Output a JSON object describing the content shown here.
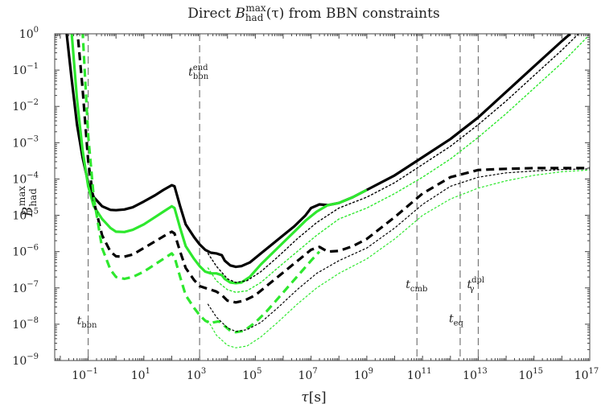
{
  "chart_data": {
    "type": "line",
    "title": "Direct B_had^max(τ) from BBN constraints",
    "title_parts": {
      "prefix": "Direct ",
      "B": "B",
      "sub": "had",
      "sup": "max",
      "suffix": "(τ) from BBN constraints"
    },
    "xlabel": {
      "main": "τ",
      "unit": "[s]"
    },
    "ylabel": {
      "B": "B",
      "sub": "had",
      "sup": "max"
    },
    "xscale": "log",
    "yscale": "log",
    "xlim_log10": [
      -2.2,
      17
    ],
    "ylim_log10": [
      -9,
      0
    ],
    "x_ticks": [
      {
        "exp": -1,
        "label": "10",
        "sup": "−1"
      },
      {
        "exp": 1,
        "label": "10",
        "sup": "1"
      },
      {
        "exp": 3,
        "label": "10",
        "sup": "3"
      },
      {
        "exp": 5,
        "label": "10",
        "sup": "5"
      },
      {
        "exp": 7,
        "label": "10",
        "sup": "7"
      },
      {
        "exp": 9,
        "label": "10",
        "sup": "9"
      },
      {
        "exp": 11,
        "label": "10",
        "sup": "11"
      },
      {
        "exp": 13,
        "label": "10",
        "sup": "13"
      },
      {
        "exp": 15,
        "label": "10",
        "sup": "15"
      },
      {
        "exp": 17,
        "label": "10",
        "sup": "17"
      }
    ],
    "y_ticks": [
      {
        "exp": 0,
        "label": "10",
        "sup": "0"
      },
      {
        "exp": -1,
        "label": "10",
        "sup": "−1"
      },
      {
        "exp": -2,
        "label": "10",
        "sup": "−2"
      },
      {
        "exp": -3,
        "label": "10",
        "sup": "−3"
      },
      {
        "exp": -4,
        "label": "10",
        "sup": "−4"
      },
      {
        "exp": -5,
        "label": "10",
        "sup": "−5"
      },
      {
        "exp": -6,
        "label": "10",
        "sup": "−6"
      },
      {
        "exp": -7,
        "label": "10",
        "sup": "−7"
      },
      {
        "exp": -8,
        "label": "10",
        "sup": "−8"
      },
      {
        "exp": -9,
        "label": "10",
        "sup": "−9"
      }
    ],
    "vlines": [
      {
        "x_log10": -1,
        "label": "t",
        "sub": "bbn",
        "sup": "",
        "label_y_log10": -8.0
      },
      {
        "x_log10": 3,
        "label": "t",
        "sub": "bbn",
        "sup": "end",
        "label_y_log10": -1.15
      },
      {
        "x_log10": 10.8,
        "label": "t",
        "sub": "cmb",
        "sup": "",
        "label_y_log10": -7.0
      },
      {
        "x_log10": 12.35,
        "label": "t",
        "sub": "eq",
        "sup": "",
        "label_y_log10": -7.95
      },
      {
        "x_log10": 13.0,
        "label": "t",
        "sub": "γ",
        "sup": "dpl",
        "label_y_log10": -7.0
      }
    ],
    "series": [
      {
        "color": "#000000",
        "style": "solid",
        "width": 3.2,
        "points": [
          [
            -1.8,
            0.2
          ],
          [
            -1.6,
            -1.2
          ],
          [
            -1.4,
            -2.5
          ],
          [
            -1.2,
            -3.4
          ],
          [
            -1.0,
            -4.1
          ],
          [
            -0.8,
            -4.5
          ],
          [
            -0.5,
            -4.75
          ],
          [
            -0.2,
            -4.85
          ],
          [
            0.0,
            -4.86
          ],
          [
            0.3,
            -4.84
          ],
          [
            0.6,
            -4.78
          ],
          [
            1.0,
            -4.62
          ],
          [
            1.4,
            -4.45
          ],
          [
            1.7,
            -4.3
          ],
          [
            2.0,
            -4.17
          ],
          [
            2.1,
            -4.2
          ],
          [
            2.3,
            -4.75
          ],
          [
            2.5,
            -5.25
          ],
          [
            2.8,
            -5.6
          ],
          [
            3.0,
            -5.8
          ],
          [
            3.2,
            -5.95
          ],
          [
            3.4,
            -6.03
          ],
          [
            3.6,
            -6.05
          ],
          [
            3.8,
            -6.1
          ],
          [
            3.9,
            -6.25
          ],
          [
            4.1,
            -6.38
          ],
          [
            4.3,
            -6.42
          ],
          [
            4.5,
            -6.4
          ],
          [
            4.8,
            -6.3
          ],
          [
            5.2,
            -6.05
          ],
          [
            5.6,
            -5.8
          ],
          [
            6.0,
            -5.55
          ],
          [
            6.4,
            -5.3
          ],
          [
            6.8,
            -5.0
          ],
          [
            7.0,
            -4.8
          ],
          [
            7.3,
            -4.7
          ],
          [
            7.6,
            -4.72
          ],
          [
            8.0,
            -4.66
          ],
          [
            8.5,
            -4.5
          ],
          [
            9.0,
            -4.3
          ],
          [
            10.0,
            -3.9
          ],
          [
            11.0,
            -3.4
          ],
          [
            12.0,
            -2.9
          ],
          [
            13.0,
            -2.3
          ],
          [
            14.0,
            -1.6
          ],
          [
            15.0,
            -0.9
          ],
          [
            16.0,
            -0.2
          ],
          [
            16.3,
            0.0
          ]
        ]
      },
      {
        "color": "#2ee82e",
        "style": "solid",
        "width": 3.2,
        "points": [
          [
            -1.6,
            0.1
          ],
          [
            -1.4,
            -1.8
          ],
          [
            -1.2,
            -3.2
          ],
          [
            -1.0,
            -4.2
          ],
          [
            -0.8,
            -4.75
          ],
          [
            -0.5,
            -5.1
          ],
          [
            -0.2,
            -5.35
          ],
          [
            0.0,
            -5.45
          ],
          [
            0.3,
            -5.46
          ],
          [
            0.6,
            -5.4
          ],
          [
            1.0,
            -5.25
          ],
          [
            1.4,
            -5.05
          ],
          [
            1.7,
            -4.9
          ],
          [
            2.0,
            -4.75
          ],
          [
            2.1,
            -4.8
          ],
          [
            2.3,
            -5.35
          ],
          [
            2.5,
            -5.85
          ],
          [
            2.8,
            -6.2
          ],
          [
            3.0,
            -6.4
          ],
          [
            3.2,
            -6.55
          ],
          [
            3.4,
            -6.6
          ],
          [
            3.6,
            -6.6
          ],
          [
            3.8,
            -6.65
          ],
          [
            3.9,
            -6.75
          ],
          [
            4.1,
            -6.85
          ],
          [
            4.3,
            -6.87
          ],
          [
            4.5,
            -6.85
          ],
          [
            4.8,
            -6.7
          ],
          [
            5.2,
            -6.35
          ],
          [
            5.6,
            -6.05
          ],
          [
            6.0,
            -5.75
          ],
          [
            6.4,
            -5.45
          ],
          [
            6.8,
            -5.15
          ],
          [
            7.2,
            -4.9
          ],
          [
            7.6,
            -4.72
          ],
          [
            8.0,
            -4.66
          ],
          [
            8.5,
            -4.5
          ],
          [
            9.0,
            -4.3
          ]
        ]
      },
      {
        "color": "#000000",
        "style": "dashed",
        "width": 3.2,
        "points": [
          [
            -1.4,
            0.2
          ],
          [
            -1.2,
            -1.5
          ],
          [
            -1.0,
            -3.5
          ],
          [
            -0.8,
            -4.6
          ],
          [
            -0.5,
            -5.55
          ],
          [
            -0.2,
            -6.0
          ],
          [
            0.0,
            -6.13
          ],
          [
            0.3,
            -6.14
          ],
          [
            0.6,
            -6.08
          ],
          [
            1.0,
            -5.9
          ],
          [
            1.4,
            -5.72
          ],
          [
            1.7,
            -5.58
          ],
          [
            2.0,
            -5.45
          ],
          [
            2.1,
            -5.5
          ],
          [
            2.3,
            -6.0
          ],
          [
            2.5,
            -6.45
          ],
          [
            2.8,
            -6.78
          ],
          [
            3.0,
            -6.95
          ],
          [
            3.2,
            -7.0
          ],
          [
            3.4,
            -7.05
          ],
          [
            3.6,
            -7.1
          ],
          [
            3.8,
            -7.2
          ],
          [
            4.0,
            -7.35
          ],
          [
            4.3,
            -7.4
          ],
          [
            4.6,
            -7.35
          ],
          [
            5.0,
            -7.2
          ],
          [
            5.4,
            -6.95
          ],
          [
            5.8,
            -6.7
          ],
          [
            6.2,
            -6.45
          ],
          [
            6.6,
            -6.2
          ],
          [
            7.0,
            -5.95
          ],
          [
            7.3,
            -5.87
          ],
          [
            7.6,
            -6.0
          ],
          [
            8.0,
            -5.98
          ],
          [
            8.5,
            -5.85
          ],
          [
            9.0,
            -5.65
          ],
          [
            10.0,
            -5.05
          ],
          [
            11.0,
            -4.4
          ],
          [
            12.0,
            -3.95
          ],
          [
            13.0,
            -3.75
          ],
          [
            14.0,
            -3.72
          ],
          [
            15.0,
            -3.7
          ],
          [
            16.0,
            -3.7
          ],
          [
            17.0,
            -3.7
          ]
        ]
      },
      {
        "color": "#2ee82e",
        "style": "dashed",
        "width": 3.2,
        "points": [
          [
            -1.2,
            0.1
          ],
          [
            -1.0,
            -2.8
          ],
          [
            -0.8,
            -4.5
          ],
          [
            -0.5,
            -5.9
          ],
          [
            -0.2,
            -6.5
          ],
          [
            0.0,
            -6.7
          ],
          [
            0.3,
            -6.75
          ],
          [
            0.6,
            -6.7
          ],
          [
            1.0,
            -6.55
          ],
          [
            1.4,
            -6.35
          ],
          [
            1.7,
            -6.2
          ],
          [
            2.0,
            -6.05
          ],
          [
            2.1,
            -6.15
          ],
          [
            2.3,
            -6.7
          ],
          [
            2.5,
            -7.2
          ],
          [
            2.8,
            -7.55
          ],
          [
            3.0,
            -7.75
          ],
          [
            3.2,
            -7.9
          ],
          [
            3.4,
            -7.98
          ],
          [
            3.5,
            -7.95
          ],
          [
            3.7,
            -7.92
          ],
          [
            3.9,
            -8.05
          ],
          [
            4.1,
            -8.18
          ],
          [
            4.3,
            -8.22
          ],
          [
            4.6,
            -8.18
          ],
          [
            5.0,
            -7.95
          ],
          [
            5.4,
            -7.65
          ],
          [
            5.8,
            -7.3
          ],
          [
            6.2,
            -6.95
          ],
          [
            6.6,
            -6.6
          ],
          [
            7.0,
            -6.25
          ],
          [
            7.3,
            -6.0
          ]
        ]
      },
      {
        "color": "#000000",
        "style": "dotted",
        "width": 1.4,
        "points": [
          [
            3.3,
            -6.05
          ],
          [
            3.6,
            -6.4
          ],
          [
            4.0,
            -6.75
          ],
          [
            4.3,
            -6.85
          ],
          [
            4.7,
            -6.8
          ],
          [
            5.2,
            -6.55
          ],
          [
            5.8,
            -6.15
          ],
          [
            6.5,
            -5.65
          ],
          [
            7.2,
            -5.2
          ],
          [
            8.0,
            -4.8
          ],
          [
            9.0,
            -4.5
          ],
          [
            10.0,
            -4.1
          ],
          [
            11.0,
            -3.6
          ],
          [
            12.0,
            -3.1
          ],
          [
            13.0,
            -2.5
          ],
          [
            14.0,
            -1.85
          ],
          [
            15.0,
            -1.15
          ],
          [
            16.0,
            -0.45
          ],
          [
            16.6,
            0.0
          ]
        ]
      },
      {
        "color": "#2ee82e",
        "style": "dotted",
        "width": 1.4,
        "points": [
          [
            3.3,
            -6.45
          ],
          [
            3.6,
            -6.8
          ],
          [
            4.0,
            -7.05
          ],
          [
            4.3,
            -7.12
          ],
          [
            4.7,
            -7.08
          ],
          [
            5.2,
            -6.85
          ],
          [
            5.8,
            -6.45
          ],
          [
            6.5,
            -6.0
          ],
          [
            7.2,
            -5.55
          ],
          [
            8.0,
            -5.1
          ],
          [
            9.0,
            -4.8
          ],
          [
            10.0,
            -4.4
          ],
          [
            11.0,
            -3.95
          ],
          [
            12.0,
            -3.45
          ],
          [
            13.0,
            -2.85
          ],
          [
            14.0,
            -2.2
          ],
          [
            15.0,
            -1.5
          ],
          [
            16.0,
            -0.8
          ],
          [
            16.9,
            -0.1
          ]
        ]
      },
      {
        "color": "#000000",
        "style": "dotted",
        "width": 1.2,
        "points": [
          [
            3.3,
            -7.45
          ],
          [
            3.6,
            -7.8
          ],
          [
            4.0,
            -8.1
          ],
          [
            4.3,
            -8.2
          ],
          [
            4.7,
            -8.15
          ],
          [
            5.2,
            -7.95
          ],
          [
            5.8,
            -7.55
          ],
          [
            6.5,
            -7.05
          ],
          [
            7.2,
            -6.6
          ],
          [
            8.0,
            -6.25
          ],
          [
            9.0,
            -5.9
          ],
          [
            10.0,
            -5.35
          ],
          [
            11.0,
            -4.7
          ],
          [
            12.0,
            -4.2
          ],
          [
            13.0,
            -3.95
          ],
          [
            14.0,
            -3.83
          ],
          [
            15.0,
            -3.78
          ],
          [
            16.0,
            -3.74
          ],
          [
            17.0,
            -3.72
          ]
        ]
      },
      {
        "color": "#2ee82e",
        "style": "dotted",
        "width": 1.2,
        "points": [
          [
            3.3,
            -7.9
          ],
          [
            3.6,
            -8.3
          ],
          [
            4.0,
            -8.58
          ],
          [
            4.3,
            -8.65
          ],
          [
            4.7,
            -8.6
          ],
          [
            5.2,
            -8.35
          ],
          [
            5.8,
            -7.95
          ],
          [
            6.5,
            -7.45
          ],
          [
            7.2,
            -7.0
          ],
          [
            8.0,
            -6.6
          ],
          [
            9.0,
            -6.2
          ],
          [
            10.0,
            -5.65
          ],
          [
            11.0,
            -5.0
          ],
          [
            12.0,
            -4.55
          ],
          [
            13.0,
            -4.25
          ],
          [
            14.0,
            -4.05
          ],
          [
            15.0,
            -3.9
          ],
          [
            16.0,
            -3.8
          ],
          [
            17.0,
            -3.75
          ]
        ]
      }
    ]
  }
}
